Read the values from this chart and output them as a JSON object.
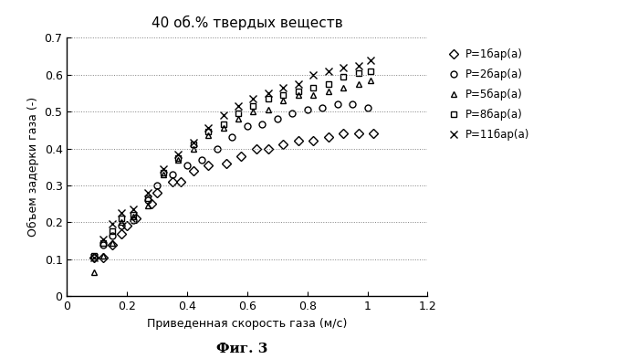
{
  "title": "40 об.% твердых веществ",
  "xlabel": "Приведенная скорость газа (м/с)",
  "ylabel": "Объем задерки газа (-)",
  "fig_label": "Фиг. 3",
  "xlim": [
    0,
    1.2
  ],
  "ylim": [
    0,
    0.7
  ],
  "xticks": [
    0,
    0.2,
    0.4,
    0.6,
    0.8,
    1.0,
    1.2
  ],
  "yticks": [
    0,
    0.1,
    0.2,
    0.3,
    0.4,
    0.5,
    0.6,
    0.7
  ],
  "series": [
    {
      "label": "P=1бар(а)",
      "marker": "D",
      "markersize": 5,
      "color": "black",
      "fillstyle": "none",
      "x": [
        0.09,
        0.12,
        0.15,
        0.18,
        0.2,
        0.23,
        0.28,
        0.3,
        0.35,
        0.38,
        0.42,
        0.47,
        0.53,
        0.58,
        0.63,
        0.67,
        0.72,
        0.77,
        0.82,
        0.87,
        0.92,
        0.97,
        1.02
      ],
      "y": [
        0.105,
        0.105,
        0.14,
        0.17,
        0.19,
        0.21,
        0.25,
        0.28,
        0.31,
        0.31,
        0.34,
        0.355,
        0.36,
        0.38,
        0.4,
        0.4,
        0.41,
        0.42,
        0.42,
        0.43,
        0.44,
        0.44,
        0.44
      ]
    },
    {
      "label": "P=2бар(а)",
      "marker": "o",
      "markersize": 5,
      "color": "black",
      "fillstyle": "none",
      "x": [
        0.09,
        0.12,
        0.15,
        0.18,
        0.22,
        0.27,
        0.3,
        0.35,
        0.4,
        0.45,
        0.5,
        0.55,
        0.6,
        0.65,
        0.7,
        0.75,
        0.8,
        0.85,
        0.9,
        0.95,
        1.0
      ],
      "y": [
        0.105,
        0.14,
        0.165,
        0.19,
        0.205,
        0.26,
        0.3,
        0.33,
        0.355,
        0.37,
        0.4,
        0.43,
        0.46,
        0.465,
        0.48,
        0.495,
        0.505,
        0.51,
        0.52,
        0.52,
        0.51
      ]
    },
    {
      "label": "P=5бар(а)",
      "marker": "^",
      "markersize": 5,
      "color": "black",
      "fillstyle": "none",
      "x": [
        0.09,
        0.12,
        0.15,
        0.18,
        0.22,
        0.27,
        0.32,
        0.37,
        0.42,
        0.47,
        0.52,
        0.57,
        0.62,
        0.67,
        0.72,
        0.77,
        0.82,
        0.87,
        0.92,
        0.97,
        1.01
      ],
      "y": [
        0.065,
        0.11,
        0.145,
        0.2,
        0.215,
        0.245,
        0.33,
        0.37,
        0.4,
        0.435,
        0.455,
        0.48,
        0.5,
        0.505,
        0.53,
        0.545,
        0.545,
        0.555,
        0.565,
        0.575,
        0.585
      ]
    },
    {
      "label": "P=8бар(а)",
      "marker": "s",
      "markersize": 5,
      "color": "black",
      "fillstyle": "none",
      "x": [
        0.09,
        0.12,
        0.15,
        0.18,
        0.22,
        0.27,
        0.32,
        0.37,
        0.42,
        0.47,
        0.52,
        0.57,
        0.62,
        0.67,
        0.72,
        0.77,
        0.82,
        0.87,
        0.92,
        0.97,
        1.01
      ],
      "y": [
        0.11,
        0.145,
        0.175,
        0.21,
        0.22,
        0.265,
        0.335,
        0.375,
        0.41,
        0.445,
        0.465,
        0.495,
        0.515,
        0.535,
        0.545,
        0.555,
        0.565,
        0.575,
        0.595,
        0.605,
        0.61
      ]
    },
    {
      "label": "P=11бар(а)",
      "marker": "x",
      "markersize": 6,
      "color": "black",
      "fillstyle": "full",
      "x": [
        0.09,
        0.12,
        0.15,
        0.18,
        0.22,
        0.27,
        0.32,
        0.37,
        0.42,
        0.47,
        0.52,
        0.57,
        0.62,
        0.67,
        0.72,
        0.77,
        0.82,
        0.87,
        0.92,
        0.97,
        1.01
      ],
      "y": [
        0.105,
        0.155,
        0.195,
        0.225,
        0.235,
        0.28,
        0.345,
        0.385,
        0.415,
        0.455,
        0.49,
        0.515,
        0.535,
        0.55,
        0.565,
        0.575,
        0.6,
        0.61,
        0.62,
        0.625,
        0.64
      ]
    }
  ]
}
